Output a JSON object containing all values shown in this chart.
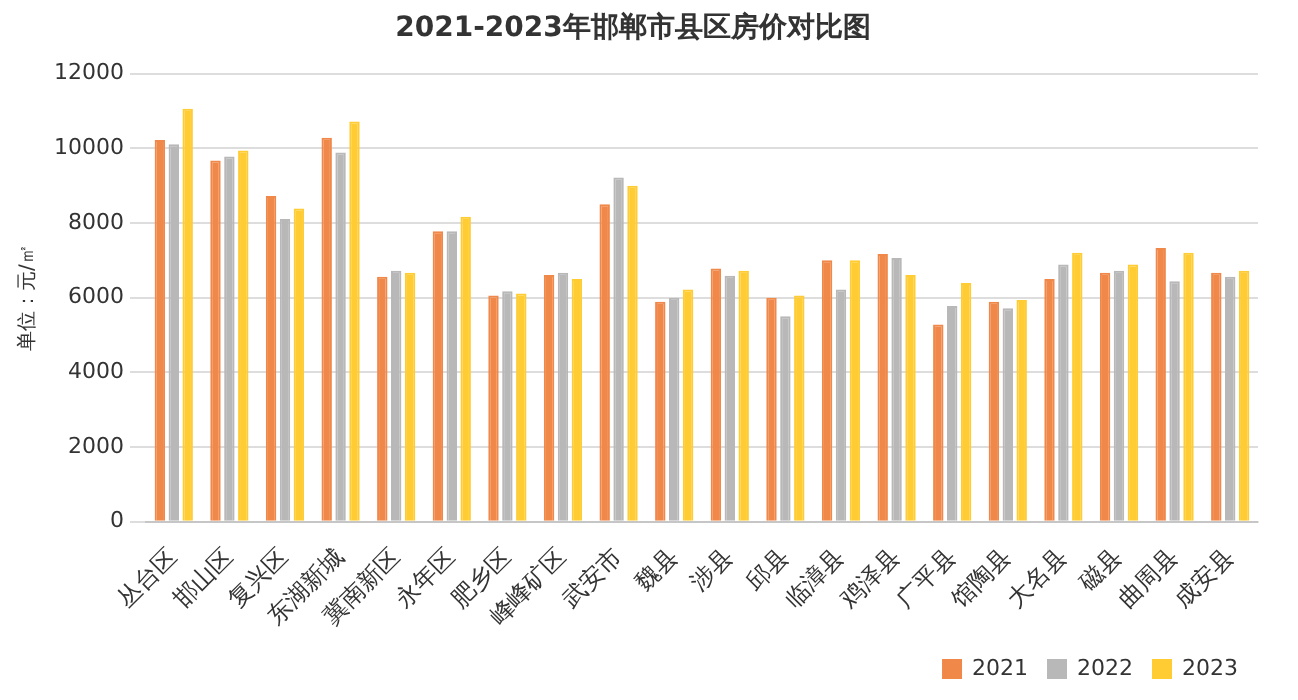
{
  "chart_data": {
    "type": "bar",
    "title": "2021-2023年邯郸市县区房价对比图",
    "ylabel": "单位：元/㎡",
    "categories": [
      "丛台区",
      "邯山区",
      "复兴区",
      "东湖新城",
      "冀南新区",
      "永年区",
      "肥乡区",
      "峰峰矿区",
      "武安市",
      "魏县",
      "涉县",
      "邱县",
      "临漳县",
      "鸡泽县",
      "广平县",
      "馆陶县",
      "大名县",
      "磁县",
      "曲周县",
      "成安县"
    ],
    "series": [
      {
        "name": "2021",
        "color": "#f0884a",
        "values": [
          10220,
          9670,
          8720,
          10280,
          6560,
          7780,
          6060,
          6610,
          8500,
          5890,
          6780,
          6000,
          7000,
          7170,
          5280,
          5890,
          6500,
          6670,
          7330,
          6670
        ]
      },
      {
        "name": "2022",
        "color": "#b8b8b8",
        "values": [
          10110,
          9780,
          8110,
          9890,
          6720,
          7780,
          6170,
          6670,
          9220,
          6000,
          6590,
          5500,
          6220,
          7060,
          5780,
          5720,
          6890,
          6720,
          6440,
          6560
        ]
      },
      {
        "name": "2023",
        "color": "#ffcc33",
        "values": [
          11060,
          9940,
          8390,
          10720,
          6670,
          8170,
          6110,
          6500,
          9000,
          6220,
          6720,
          6060,
          7000,
          6610,
          6390,
          5940,
          7200,
          6890,
          7200,
          6720
        ]
      }
    ],
    "ylim": [
      0,
      12000
    ],
    "yticks": [
      0,
      2000,
      4000,
      6000,
      8000,
      10000,
      12000
    ],
    "grid": "y",
    "legend": "bottom"
  }
}
